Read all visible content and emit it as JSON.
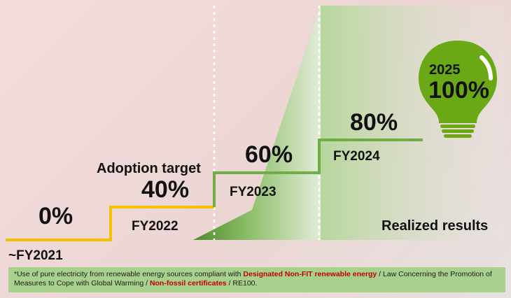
{
  "stages": [
    {
      "percent": "0%",
      "year": "~FY2021"
    },
    {
      "percent": "40%",
      "year": "FY2022"
    },
    {
      "percent": "60%",
      "year": "FY2023"
    },
    {
      "percent": "80%",
      "year": "FY2024"
    }
  ],
  "adoption_target_label": "Adoption target",
  "realized_results_label": "Realized results",
  "goal": {
    "year": "2025",
    "percent": "100%"
  },
  "footnote": {
    "prefix": "*Use of pure electricity from renewable energy sources compliant with ",
    "highlight1": "Designated Non-FIT renewable energy",
    "middle1": " / Law Concerning the Promotion of Measures to Cope with Global Warming / ",
    "highlight2": "Non-fossil certificates",
    "suffix": " / RE100."
  },
  "colors": {
    "target_line_yellow": "#f5c000",
    "target_line_green": "#70ad47",
    "results_green_dark": "#4e8a2e",
    "results_green_light": "#b5d79a",
    "bulb_green": "#6aa815",
    "footnote_bg": "#a9d18e",
    "footnote_highlight": "#c00000"
  },
  "icons": {
    "goal": "lightbulb-icon"
  }
}
